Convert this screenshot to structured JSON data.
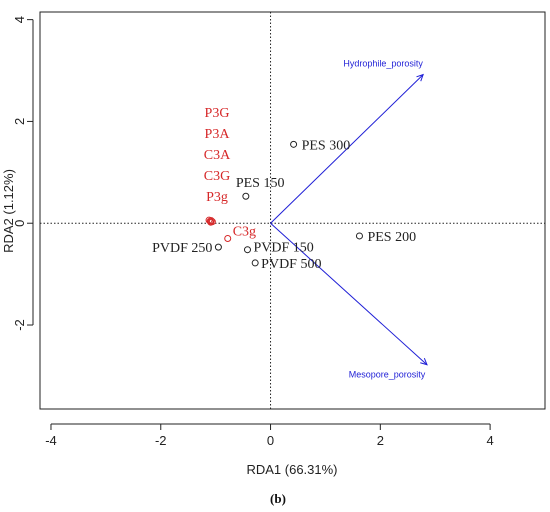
{
  "panel_label": "(b)",
  "chart_data": {
    "type": "scatter",
    "subtype": "rda-biplot",
    "title": "",
    "xlabel": "RDA1 (66.31%)",
    "ylabel": "RDA2 (1.12%)",
    "xlim": [
      -4.2,
      5.0
    ],
    "ylim": [
      -3.65,
      4.15
    ],
    "xticks": [
      -4,
      -2,
      0,
      2,
      4
    ],
    "yticks": [
      -2,
      0,
      2,
      4
    ],
    "reference_lines": [
      {
        "axis": "x",
        "value": 0
      },
      {
        "axis": "y",
        "value": 0
      }
    ],
    "grid": false,
    "point_colors": {
      "black": "#222222",
      "red": "#d62728"
    },
    "sites": [
      {
        "label": "PES 300",
        "x": 0.42,
        "y": 1.55,
        "color": "black"
      },
      {
        "label": "PES 150",
        "x": -0.45,
        "y": 0.53,
        "color": "black"
      },
      {
        "label": "PES 200",
        "x": 1.62,
        "y": -0.25,
        "color": "black"
      },
      {
        "label": "PVDF 250",
        "x": -0.95,
        "y": -0.47,
        "color": "black"
      },
      {
        "label": "PVDF 150",
        "x": -0.42,
        "y": -0.52,
        "color": "black"
      },
      {
        "label": "PVDF 500",
        "x": -0.28,
        "y": -0.78,
        "color": "black"
      },
      {
        "label": "C3g",
        "x": -0.78,
        "y": -0.3,
        "color": "red"
      },
      {
        "label": "P3G",
        "x": -1.12,
        "y": 0.06,
        "color": "red"
      },
      {
        "label": "P3A",
        "x": -1.1,
        "y": 0.04,
        "color": "red"
      },
      {
        "label": "C3A",
        "x": -1.08,
        "y": 0.05,
        "color": "red"
      },
      {
        "label": "C3G",
        "x": -1.06,
        "y": 0.03,
        "color": "red"
      },
      {
        "label": "P3g",
        "x": -1.09,
        "y": 0.02,
        "color": "red"
      }
    ],
    "red_label_stack": [
      "P3G",
      "P3A",
      "C3A",
      "C3G",
      "P3g"
    ],
    "vectors": [
      {
        "label": "Hydrophile_porosity",
        "x": 2.78,
        "y": 2.92,
        "color": "#1f1fd6"
      },
      {
        "label": "Mesopore_porosity",
        "x": 2.85,
        "y": -2.78,
        "color": "#1f1fd6"
      }
    ]
  }
}
